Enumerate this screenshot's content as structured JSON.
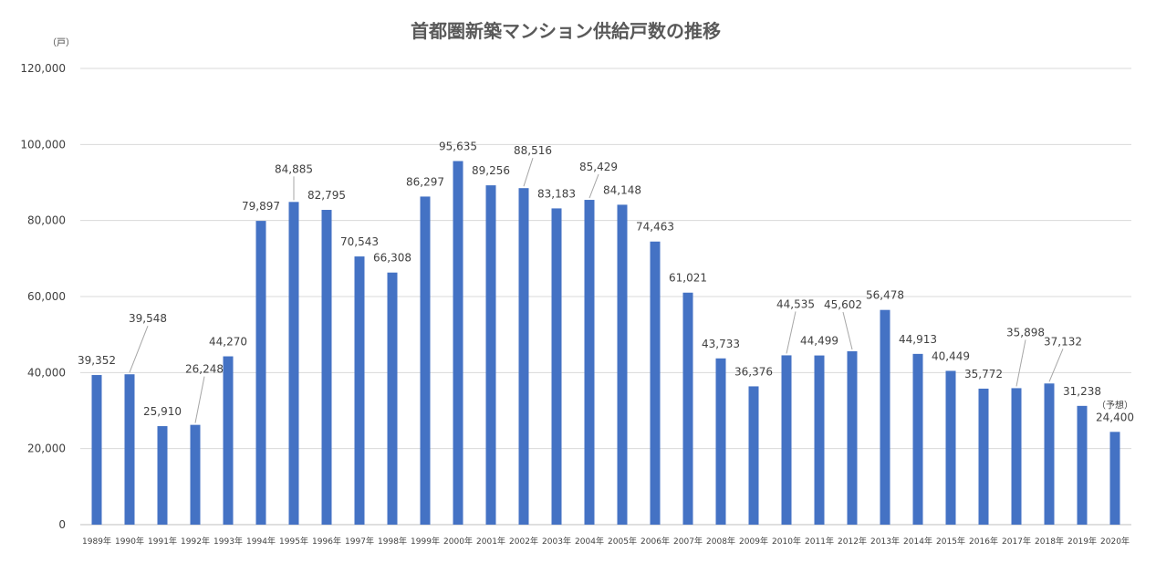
{
  "chart_data": {
    "type": "bar",
    "title": "首都圏新築マンション供給戸数の推移",
    "unit_label": "（戸）",
    "xlabel": "",
    "ylabel": "",
    "ylim": [
      0,
      120000
    ],
    "yticks": [
      0,
      20000,
      40000,
      60000,
      80000,
      100000,
      120000
    ],
    "ytick_labels": [
      "0",
      "20,000",
      "40,000",
      "60,000",
      "80,000",
      "100,000",
      "120,000"
    ],
    "grid": true,
    "color": "#4472c4",
    "categories": [
      "1989年",
      "1990年",
      "1991年",
      "1992年",
      "1993年",
      "1994年",
      "1995年",
      "1996年",
      "1997年",
      "1998年",
      "1999年",
      "2000年",
      "2001年",
      "2002年",
      "2003年",
      "2004年",
      "2005年",
      "2006年",
      "2007年",
      "2008年",
      "2009年",
      "2010年",
      "2011年",
      "2012年",
      "2013年",
      "2014年",
      "2015年",
      "2016年",
      "2017年",
      "2018年",
      "2019年",
      "2020年"
    ],
    "values": [
      39352,
      39548,
      25910,
      26248,
      44270,
      79897,
      84885,
      82795,
      70543,
      66308,
      86297,
      95635,
      89256,
      88516,
      83183,
      85429,
      84148,
      74463,
      61021,
      43733,
      36376,
      44535,
      44499,
      45602,
      56478,
      44913,
      40449,
      35772,
      35898,
      37132,
      31238,
      24400
    ],
    "value_labels": [
      "39,352",
      "39,548",
      "25,910",
      "26,248",
      "44,270",
      "79,897",
      "84,885",
      "82,795",
      "70,543",
      "66,308",
      "86,297",
      "95,635",
      "89,256",
      "88,516",
      "83,183",
      "85,429",
      "84,148",
      "74,463",
      "61,021",
      "43,733",
      "36,376",
      "44,535",
      "44,499",
      "45,602",
      "56,478",
      "44,913",
      "40,449",
      "35,772",
      "35,898",
      "37,132",
      "31,238",
      "24,400"
    ],
    "annotations": [
      {
        "category": "2020年",
        "text": "（予想）"
      }
    ]
  }
}
